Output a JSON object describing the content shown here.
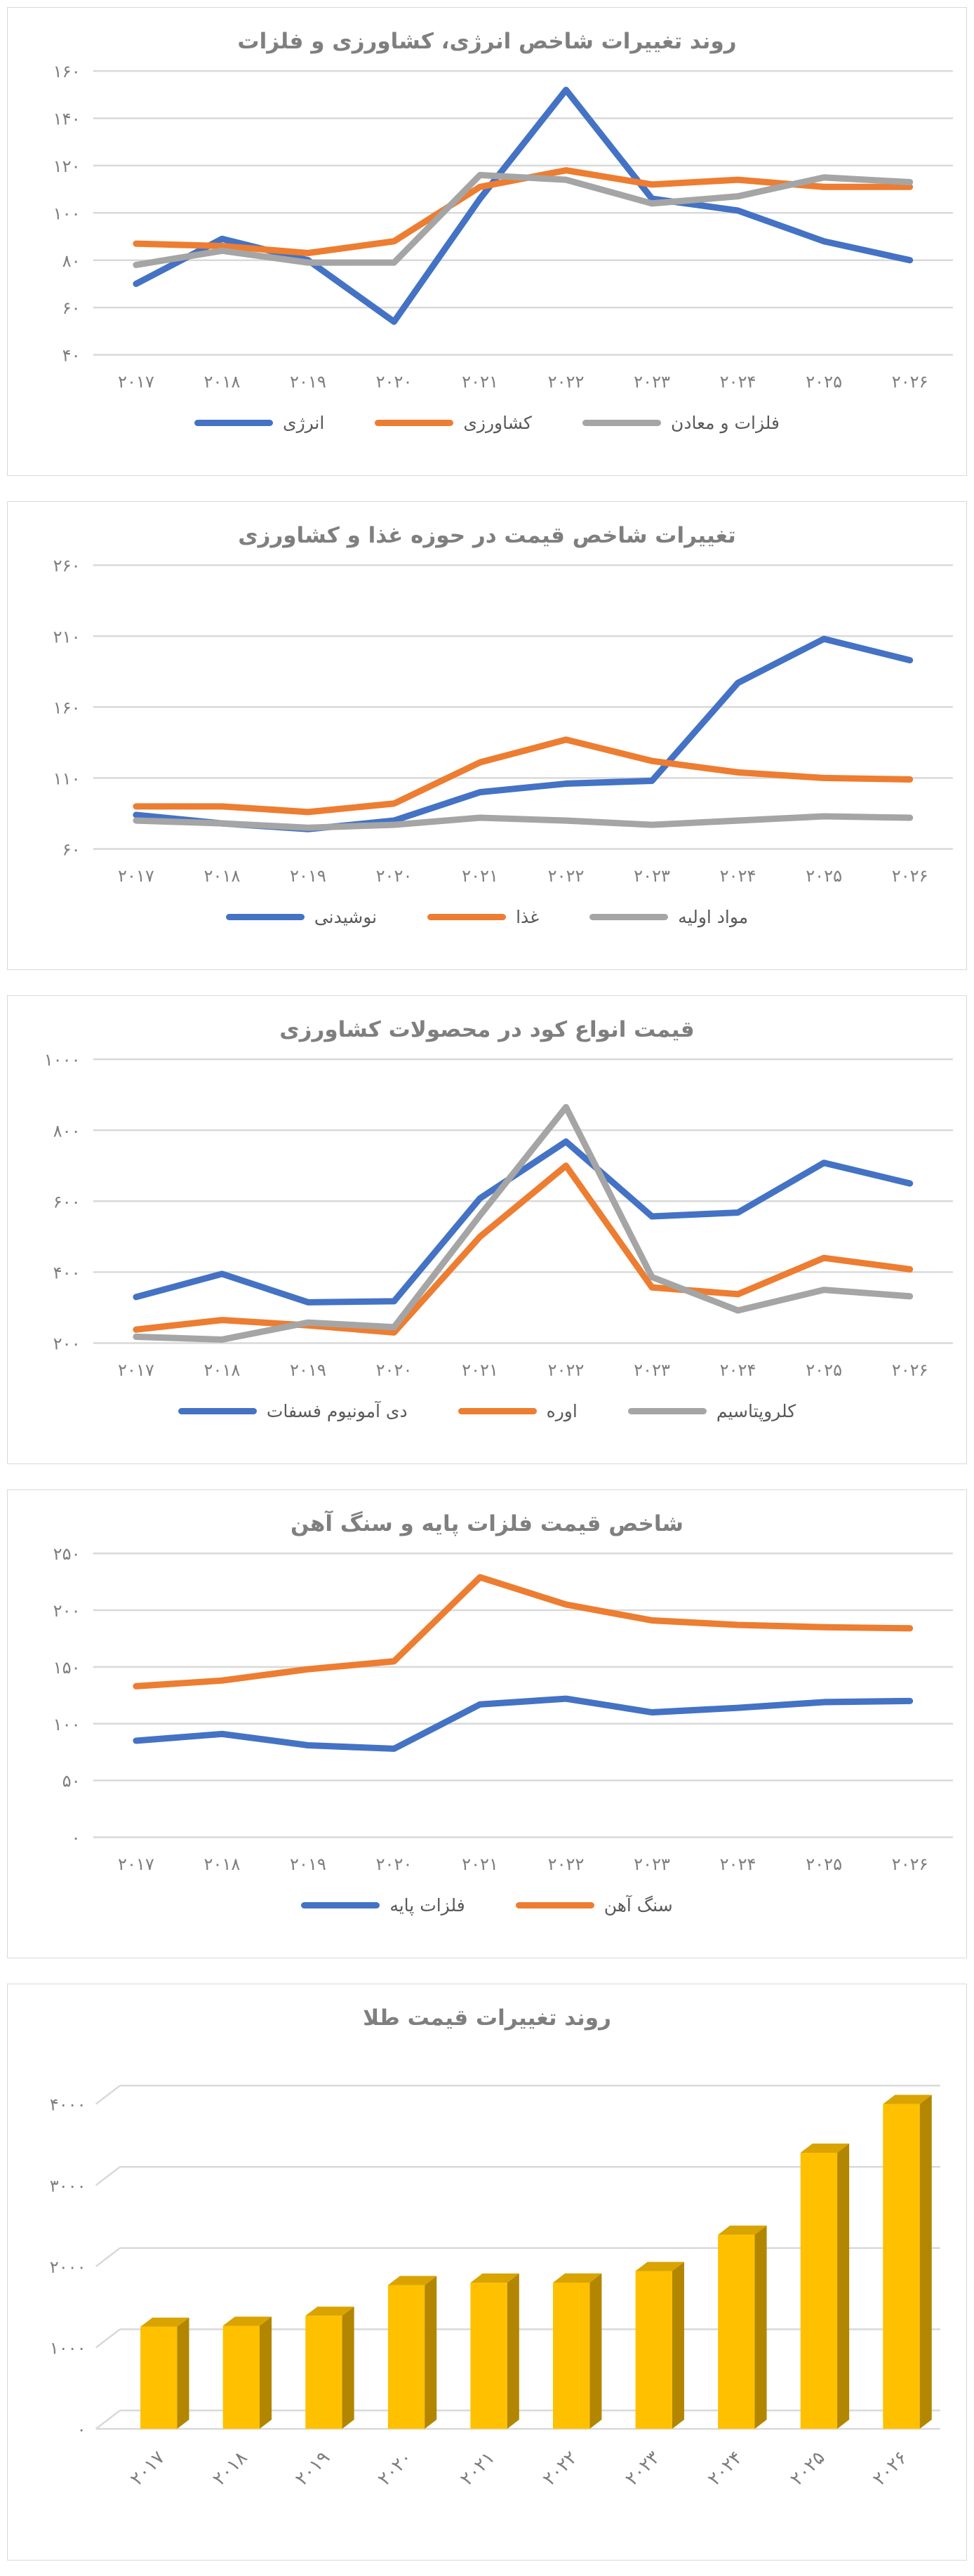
{
  "page": {
    "background": "#ffffff"
  },
  "colors": {
    "blue": "#4472C4",
    "orange": "#ED7D31",
    "gray": "#A5A5A5",
    "gold": "#FFC000",
    "gold_side": "#B28600",
    "gold_top": "#D9A300",
    "title_text": "#7F7F7F",
    "axis_text": "#7D7D7D",
    "legend_text": "#595959",
    "gridline": "#D9D9D9",
    "card_border": "#D9D9D9"
  },
  "x_labels_fa": [
    "۲۰۱۷",
    "۲۰۱۸",
    "۲۰۱۹",
    "۲۰۲۰",
    "۲۰۲۱",
    "۲۰۲۲",
    "۲۰۲۳",
    "۲۰۲۴",
    "۲۰۲۵",
    "۲۰۲۶"
  ],
  "chart_data": [
    {
      "id": "energy-agri-metals-index",
      "type": "line",
      "title": "روند تغییرات شاخص انرژی، کشاورزی و فلزات",
      "ylim": [
        40,
        160
      ],
      "y_ticks": [
        40,
        60,
        80,
        100,
        120,
        140,
        160
      ],
      "y_ticks_fa": [
        "۴۰",
        "۶۰",
        "۸۰",
        "۱۰۰",
        "۱۲۰",
        "۱۴۰",
        "۱۶۰"
      ],
      "grid": true,
      "legend_position": "bottom",
      "categories": [
        "2017",
        "2018",
        "2019",
        "2020",
        "2021",
        "2022",
        "2023",
        "2024",
        "2025",
        "2026"
      ],
      "series": [
        {
          "id": "energy",
          "label": "انرژی",
          "color": "blue",
          "values": [
            70,
            89,
            80,
            54,
            106,
            152,
            106,
            101,
            88,
            80
          ]
        },
        {
          "id": "agriculture",
          "label": "کشاورزی",
          "color": "orange",
          "values": [
            87,
            86,
            83,
            88,
            111,
            118,
            112,
            114,
            111,
            111
          ]
        },
        {
          "id": "metals-mining",
          "label": "فلزات و معادن",
          "color": "gray",
          "values": [
            78,
            84,
            79,
            79,
            116,
            114,
            104,
            107,
            115,
            113
          ]
        }
      ]
    },
    {
      "id": "food-agri-price-index",
      "type": "line",
      "title": "تغییرات شاخص قیمت در حوزه غذا و کشاورزی",
      "ylim": [
        60,
        260
      ],
      "y_ticks": [
        60,
        110,
        160,
        210,
        260
      ],
      "y_ticks_fa": [
        "۶۰",
        "۱۱۰",
        "۱۶۰",
        "۲۱۰",
        "۲۶۰"
      ],
      "grid": true,
      "legend_position": "bottom",
      "categories": [
        "2017",
        "2018",
        "2019",
        "2020",
        "2021",
        "2022",
        "2023",
        "2024",
        "2025",
        "2026"
      ],
      "series": [
        {
          "id": "beverages",
          "label": "نوشیدنی",
          "color": "blue",
          "values": [
            84,
            78,
            74,
            80,
            100,
            106,
            108,
            177,
            208,
            193
          ]
        },
        {
          "id": "food",
          "label": "غذا",
          "color": "orange",
          "values": [
            90,
            90,
            86,
            92,
            121,
            137,
            122,
            114,
            110,
            109
          ]
        },
        {
          "id": "raw-materials",
          "label": "مواد اولیه",
          "color": "gray",
          "values": [
            80,
            78,
            75,
            77,
            82,
            80,
            77,
            80,
            83,
            82
          ]
        }
      ]
    },
    {
      "id": "fertilizer-prices",
      "type": "line",
      "title": "قیمت انواع کود در محصولات کشاورزی",
      "ylim": [
        200,
        1000
      ],
      "y_ticks": [
        200,
        400,
        600,
        800,
        1000
      ],
      "y_ticks_fa": [
        "۲۰۰",
        "۴۰۰",
        "۶۰۰",
        "۸۰۰",
        "۱۰۰۰"
      ],
      "grid": true,
      "legend_position": "bottom",
      "categories": [
        "2017",
        "2018",
        "2019",
        "2020",
        "2021",
        "2022",
        "2023",
        "2024",
        "2025",
        "2026"
      ],
      "series": [
        {
          "id": "dap",
          "label": "دی آمونیوم فسفات",
          "color": "blue",
          "values": [
            330,
            395,
            315,
            318,
            608,
            768,
            557,
            568,
            708,
            650
          ]
        },
        {
          "id": "urea",
          "label": "اوره",
          "color": "orange",
          "values": [
            238,
            265,
            250,
            230,
            500,
            700,
            357,
            338,
            440,
            408
          ]
        },
        {
          "id": "potassium-chloride",
          "label": "کلروپتاسیم",
          "color": "gray",
          "values": [
            218,
            210,
            258,
            245,
            560,
            865,
            386,
            292,
            350,
            332
          ]
        }
      ]
    },
    {
      "id": "base-metals-iron-ore-index",
      "type": "line",
      "title": "شاخص قیمت فلزات پایه و سنگ آهن",
      "ylim": [
        0,
        250
      ],
      "y_ticks": [
        0,
        50,
        100,
        150,
        200,
        250
      ],
      "y_ticks_fa": [
        "۰",
        "۵۰",
        "۱۰۰",
        "۱۵۰",
        "۲۰۰",
        "۲۵۰"
      ],
      "grid": true,
      "legend_position": "bottom",
      "categories": [
        "2017",
        "2018",
        "2019",
        "2020",
        "2021",
        "2022",
        "2023",
        "2024",
        "2025",
        "2026"
      ],
      "series": [
        {
          "id": "base-metals",
          "label": "فلزات پایه",
          "color": "blue",
          "values": [
            85,
            91,
            81,
            78,
            117,
            122,
            110,
            114,
            119,
            120
          ]
        },
        {
          "id": "iron-ore",
          "label": "سنگ آهن",
          "color": "orange",
          "values": [
            133,
            138,
            148,
            155,
            229,
            205,
            191,
            187,
            185,
            184
          ]
        }
      ]
    },
    {
      "id": "gold-price-trend",
      "type": "bar3d",
      "title": "روند تغییرات قیمت طلا",
      "ylim": [
        0,
        4000
      ],
      "y_ticks": [
        0,
        1000,
        2000,
        3000,
        4000
      ],
      "y_ticks_fa": [
        "۰",
        "۱۰۰۰",
        "۲۰۰۰",
        "۳۰۰۰",
        "۴۰۰۰"
      ],
      "grid": true,
      "legend_position": "none",
      "categories": [
        "2017",
        "2018",
        "2019",
        "2020",
        "2021",
        "2022",
        "2023",
        "2024",
        "2025",
        "2026"
      ],
      "series": [
        {
          "id": "gold",
          "label": "طلا",
          "color": "gold",
          "values": [
            1257,
            1269,
            1392,
            1770,
            1800,
            1801,
            1943,
            2390,
            3400,
            4000
          ]
        }
      ]
    }
  ]
}
